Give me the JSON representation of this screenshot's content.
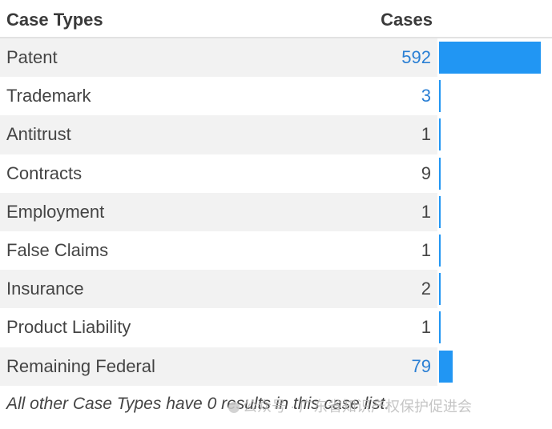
{
  "header": {
    "type_label": "Case Types",
    "cases_label": "Cases"
  },
  "max_count": 592,
  "rows": [
    {
      "type": "Patent",
      "count": "592",
      "value": 592,
      "link": true
    },
    {
      "type": "Trademark",
      "count": "3",
      "value": 3,
      "link": true
    },
    {
      "type": "Antitrust",
      "count": "1",
      "value": 1,
      "link": false
    },
    {
      "type": "Contracts",
      "count": "9",
      "value": 9,
      "link": false
    },
    {
      "type": "Employment",
      "count": "1",
      "value": 1,
      "link": false
    },
    {
      "type": "False Claims",
      "count": "1",
      "value": 1,
      "link": false
    },
    {
      "type": "Insurance",
      "count": "2",
      "value": 2,
      "link": false
    },
    {
      "type": "Product Liability",
      "count": "1",
      "value": 1,
      "link": false
    },
    {
      "type": "Remaining Federal",
      "count": "79",
      "value": 79,
      "link": true
    }
  ],
  "footnote": "All other Case Types have 0 results in this case list.",
  "watermark": "公众号 · 广东省知识产权保护促进会",
  "colors": {
    "bar": "#2196f3",
    "link": "#2a7fd4",
    "row_shade": "#f2f2f2"
  }
}
